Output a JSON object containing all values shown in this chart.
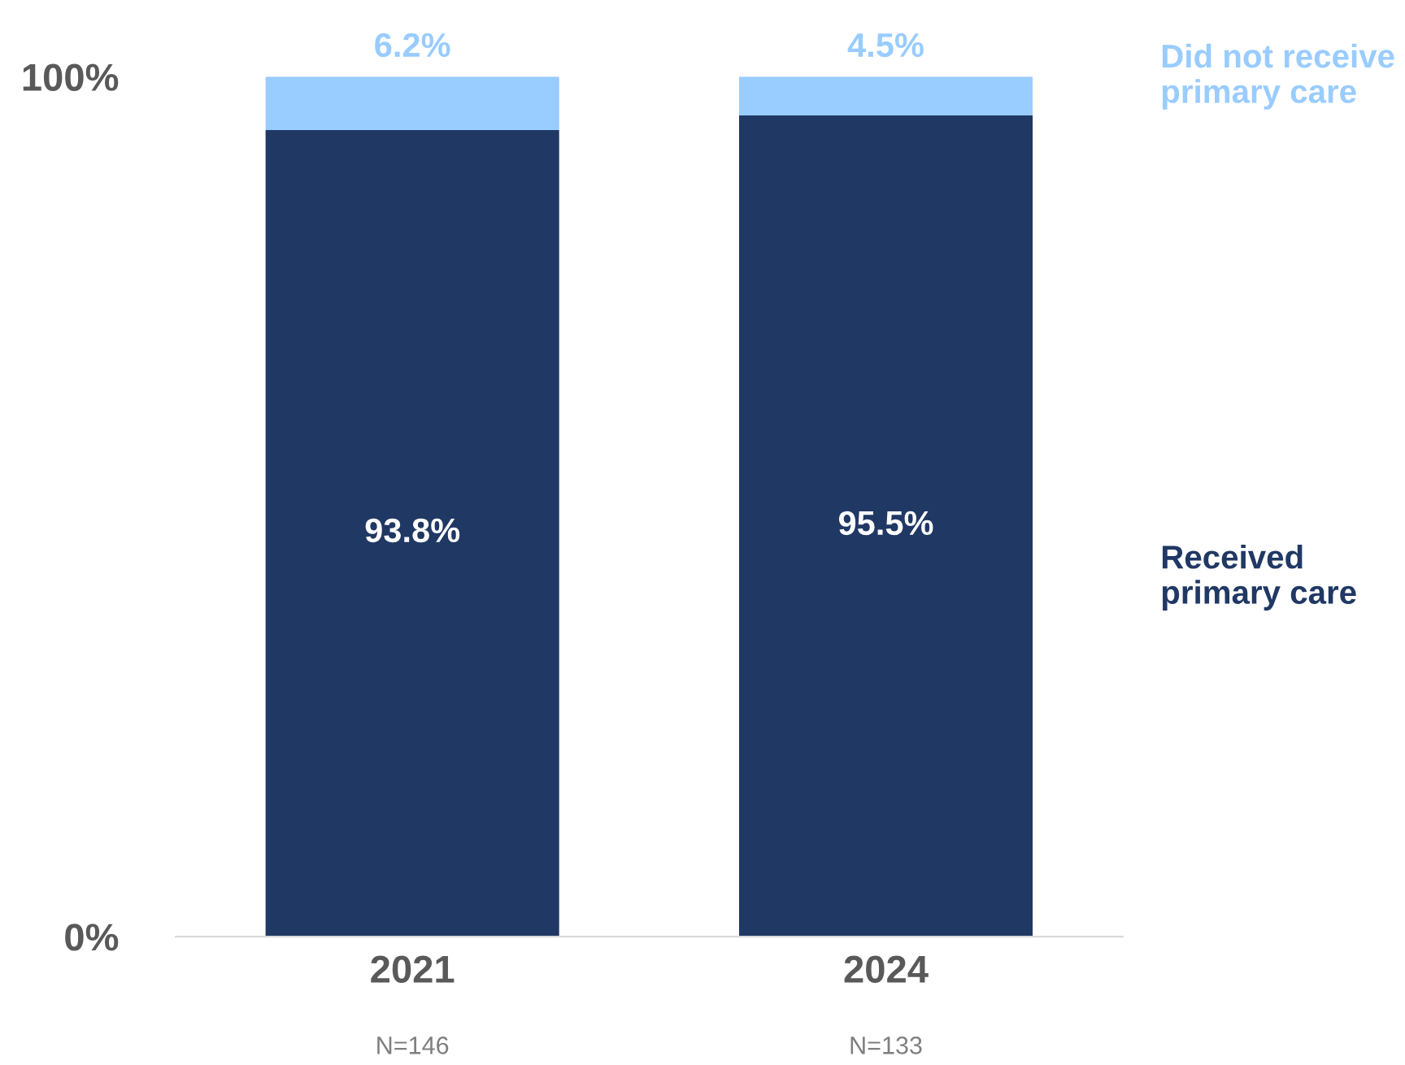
{
  "chart_data": {
    "type": "bar",
    "stacked": true,
    "categories": [
      "2021",
      "2024"
    ],
    "series": [
      {
        "name": "Received\nprimary care",
        "color": "#203864",
        "values": [
          93.8,
          95.5
        ],
        "value_labels": [
          "93.8%",
          "95.5%"
        ]
      },
      {
        "name": "Did not receive\nprimary care",
        "color": "#99ccff",
        "values": [
          6.2,
          4.5
        ],
        "value_labels": [
          "6.2%",
          "4.5%"
        ]
      }
    ],
    "ylim": [
      0,
      100
    ],
    "yticks": [
      {
        "value": 0,
        "label": "0%"
      },
      {
        "value": 100,
        "label": "100%"
      }
    ],
    "annotations": [
      "N=146",
      "N=133"
    ],
    "grid": false,
    "legend": false
  }
}
